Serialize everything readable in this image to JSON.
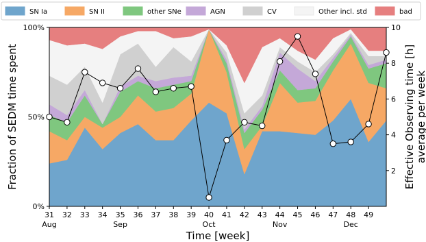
{
  "chart_data": {
    "type": "area",
    "stacked": true,
    "normalized_percent": true,
    "xlabel": "Time [week]",
    "ylabel_left": "Fraction of SEDM time spent",
    "ylabel_right_line1": "Effective Observing time [h]",
    "ylabel_right_line2": "average per week",
    "x": [
      31,
      32,
      33,
      34,
      35,
      36,
      37,
      38,
      39,
      40,
      41,
      42,
      43,
      44,
      45,
      46,
      47,
      48,
      49,
      50
    ],
    "x_tick_labels": [
      "31",
      "32",
      "33",
      "34",
      "35",
      "36",
      "37",
      "38",
      "39",
      "40",
      "41",
      "42",
      "43",
      "44",
      "45",
      "46",
      "47",
      "48",
      "49"
    ],
    "month_labels": [
      {
        "label": "Aug",
        "week": 31
      },
      {
        "label": "Sep",
        "week": 35
      },
      {
        "label": "Oct",
        "week": 40
      },
      {
        "label": "Nov",
        "week": 44
      },
      {
        "label": "Dec",
        "week": 48
      }
    ],
    "ylim_left": [
      0,
      100
    ],
    "y_ticks_left": [
      "0%",
      "50%",
      "100%"
    ],
    "ylim_right": [
      0,
      10
    ],
    "y_ticks_right": [
      "2",
      "4",
      "6",
      "8",
      "10"
    ],
    "legend_position": "top",
    "series": [
      {
        "name": "SN Ia",
        "color": "#6fa5cc",
        "values": [
          24,
          26,
          44,
          32,
          41,
          46,
          37,
          37,
          48,
          58,
          52,
          18,
          42,
          42,
          41,
          40,
          48,
          60,
          36,
          48
        ]
      },
      {
        "name": "SN II",
        "color": "#f6a865",
        "values": [
          18,
          11,
          6,
          12,
          9,
          16,
          16,
          18,
          15,
          41,
          23,
          14,
          3,
          27,
          17,
          19,
          28,
          31,
          33,
          18
        ]
      },
      {
        "name": "other SNe",
        "color": "#7fc77f",
        "values": [
          9,
          10,
          12,
          2,
          14,
          8,
          13,
          13,
          7,
          0,
          5,
          9,
          9,
          7,
          7,
          7,
          5,
          4,
          8,
          14
        ]
      },
      {
        "name": "AGN",
        "color": "#c4a8d8",
        "values": [
          6,
          4,
          3,
          0,
          3,
          3,
          4,
          4,
          3,
          0,
          2,
          2,
          2,
          10,
          12,
          4,
          2,
          1,
          2,
          2
        ]
      },
      {
        "name": "CV",
        "color": "#d0d0d0",
        "values": [
          16,
          17,
          13,
          12,
          18,
          18,
          8,
          17,
          8,
          0,
          4,
          9,
          6,
          3,
          4,
          5,
          2,
          1,
          5,
          2
        ]
      },
      {
        "name": "Other incl. std",
        "color": "#f4f4f4",
        "values": [
          20,
          22,
          13,
          30,
          10,
          7,
          20,
          5,
          14,
          0,
          4,
          17,
          27,
          5,
          6,
          7,
          9,
          2,
          3,
          3
        ]
      },
      {
        "name": "bad",
        "color": "#e67f7f",
        "values": [
          7,
          10,
          9,
          12,
          5,
          2,
          2,
          6,
          5,
          1,
          10,
          31,
          11,
          6,
          13,
          18,
          6,
          1,
          13,
          13
        ]
      }
    ],
    "line_series": {
      "name": "",
      "axis": "right",
      "values": [
        5.0,
        4.7,
        7.5,
        6.9,
        6.6,
        7.7,
        6.4,
        6.6,
        6.7,
        0.5,
        3.7,
        4.7,
        4.5,
        8.1,
        9.5,
        7.4,
        3.5,
        3.6,
        4.6,
        8.6
      ]
    }
  }
}
